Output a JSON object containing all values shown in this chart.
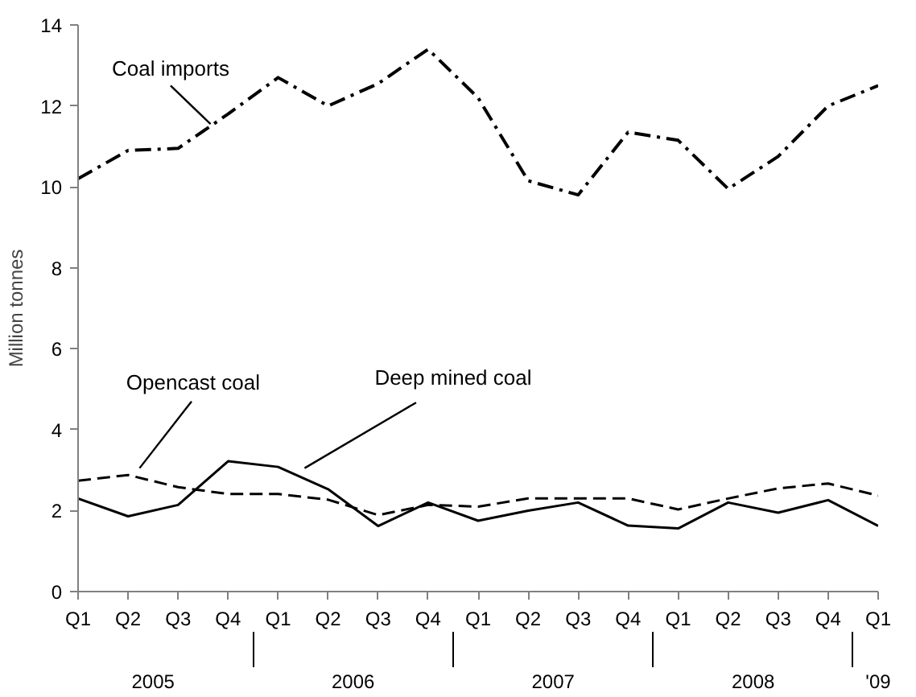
{
  "chart_data": {
    "type": "line",
    "ylabel": "Million tonnes",
    "categories": [
      "Q1",
      "Q2",
      "Q3",
      "Q4",
      "Q1",
      "Q2",
      "Q3",
      "Q4",
      "Q1",
      "Q2",
      "Q3",
      "Q4",
      "Q1",
      "Q2",
      "Q3",
      "Q4",
      "Q1"
    ],
    "annotations": [
      "2005",
      "2006",
      "2007",
      "2008",
      "'09"
    ],
    "series": [
      {
        "name": "Coal imports",
        "color": "#000000",
        "line_style": "dashdot",
        "values": [
          10.2,
          10.9,
          10.95,
          11.8,
          12.7,
          12.0,
          12.55,
          13.4,
          12.2,
          10.15,
          9.8,
          11.35,
          11.15,
          9.95,
          10.75,
          12.0,
          12.5
        ]
      },
      {
        "name": "Opencast coal",
        "color": "#000000",
        "line_style": "dashed",
        "values": [
          2.74,
          2.88,
          2.58,
          2.41,
          2.41,
          2.27,
          1.89,
          2.14,
          2.1,
          2.3,
          2.3,
          2.3,
          2.03,
          2.3,
          2.55,
          2.67,
          2.37
        ]
      },
      {
        "name": "Deep mined coal",
        "color": "#000000",
        "line_style": "solid",
        "values": [
          2.3,
          1.86,
          2.14,
          3.22,
          3.08,
          2.53,
          1.62,
          2.2,
          1.75,
          2.0,
          2.2,
          1.63,
          1.56,
          2.2,
          1.95,
          2.26,
          1.62
        ]
      }
    ],
    "ylim": [
      0,
      14
    ],
    "yticks": [
      0,
      2,
      4,
      6,
      8,
      10,
      12,
      14
    ],
    "grid": false,
    "marker": "none"
  }
}
